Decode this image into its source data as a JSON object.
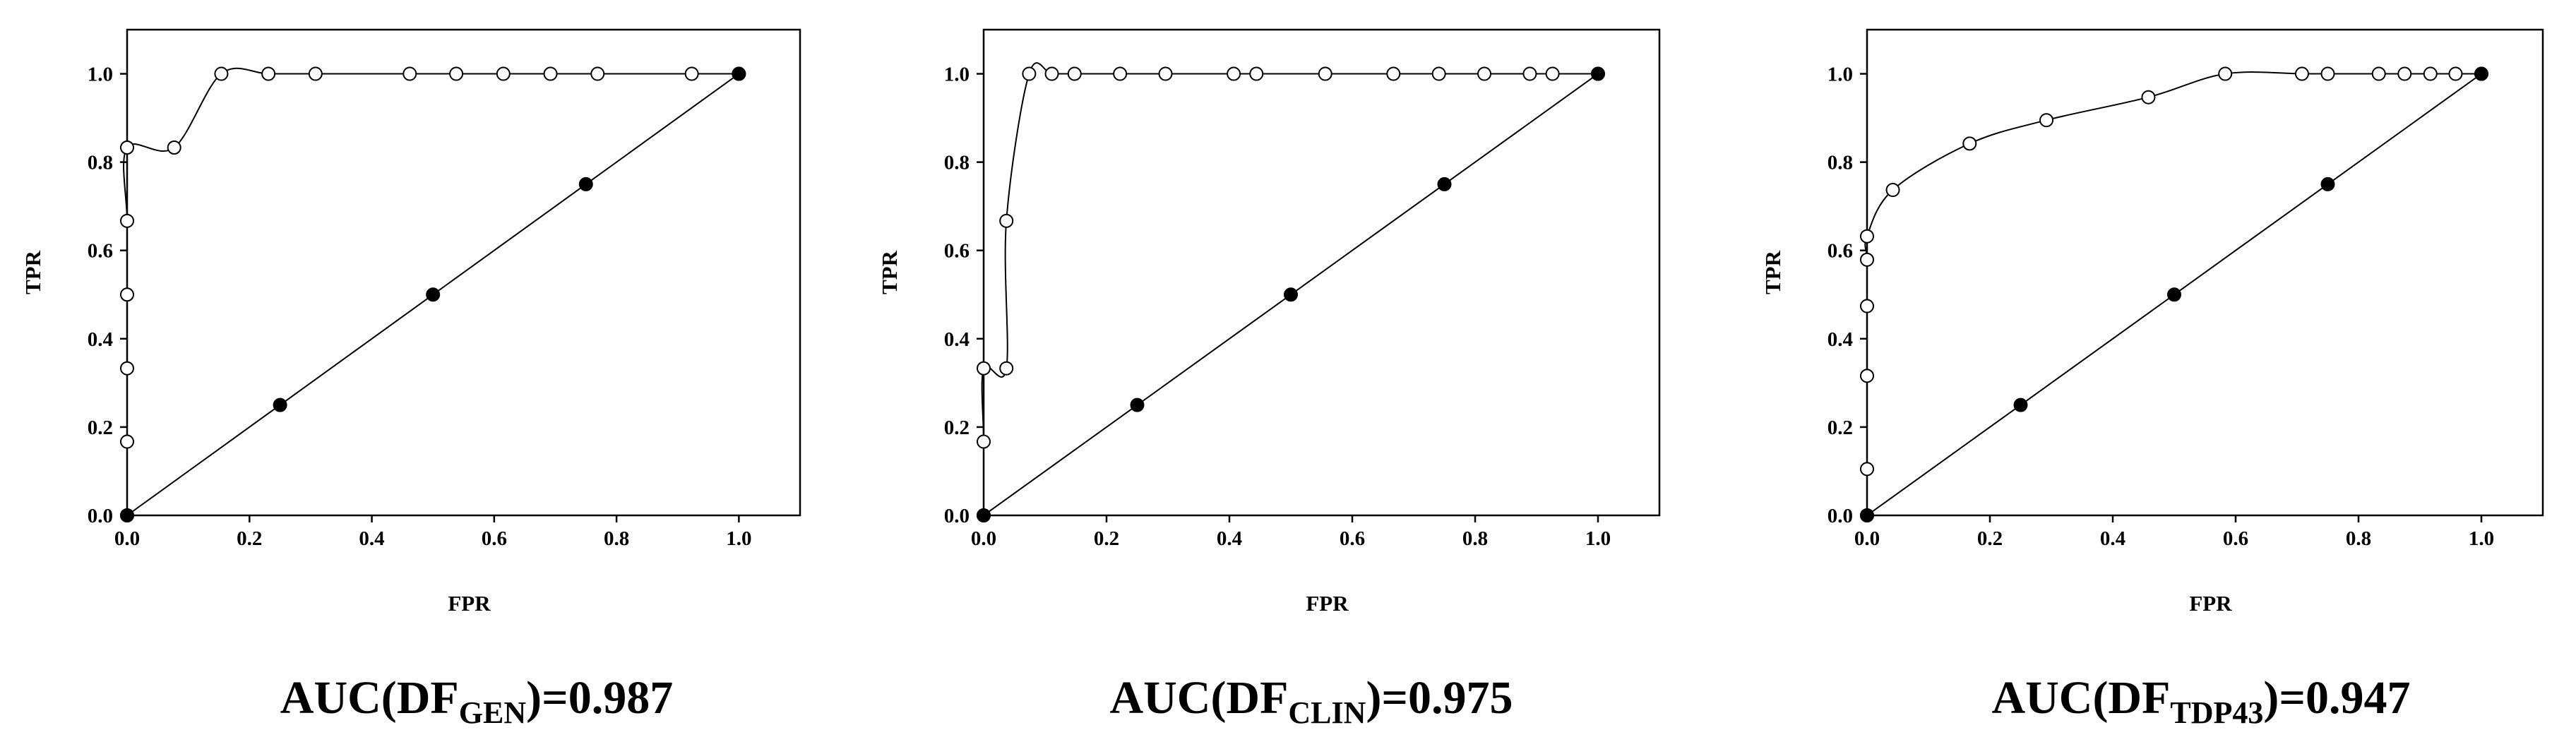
{
  "chart_data": [
    {
      "type": "line",
      "xlabel": "FPR",
      "ylabel": "TPR",
      "xlim": [
        0,
        1.1
      ],
      "ylim": [
        0,
        1.1
      ],
      "xticks": [
        "0.0",
        "0.2",
        "0.4",
        "0.6",
        "0.8",
        "1.0"
      ],
      "yticks": [
        "0.0",
        "0.2",
        "0.4",
        "0.6",
        "0.8",
        "1.0"
      ],
      "caption": {
        "prefix": "AUC(DF",
        "subscript": "GEN",
        "suffix": ")=0.987"
      },
      "series": [
        {
          "marker": "open-circle",
          "x": [
            0,
            0,
            0,
            0,
            0,
            0,
            0.077,
            0.154,
            0.231,
            0.308,
            0.462,
            0.538,
            0.615,
            0.692,
            0.769,
            0.923,
            1.0
          ],
          "y": [
            0,
            0.167,
            0.333,
            0.5,
            0.667,
            0.833,
            0.833,
            1.0,
            1.0,
            1.0,
            1.0,
            1.0,
            1.0,
            1.0,
            1.0,
            1.0,
            1.0
          ]
        },
        {
          "marker": "filled-circle",
          "x": [
            0,
            0.25,
            0.5,
            0.75,
            1.0
          ],
          "y": [
            0,
            0.25,
            0.5,
            0.75,
            1.0
          ]
        }
      ]
    },
    {
      "type": "line",
      "xlabel": "FPR",
      "ylabel": "TPR",
      "xlim": [
        0,
        1.1
      ],
      "ylim": [
        0,
        1.1
      ],
      "xticks": [
        "0.0",
        "0.2",
        "0.4",
        "0.6",
        "0.8",
        "1.0"
      ],
      "yticks": [
        "0.0",
        "0.2",
        "0.4",
        "0.6",
        "0.8",
        "1.0"
      ],
      "caption": {
        "prefix": "AUC(DF",
        "subscript": "CLIN",
        "suffix": ")=0.975"
      },
      "series": [
        {
          "marker": "open-circle",
          "x": [
            0,
            0,
            0,
            0.037,
            0.037,
            0.074,
            0.111,
            0.148,
            0.222,
            0.296,
            0.407,
            0.444,
            0.556,
            0.667,
            0.741,
            0.815,
            0.889,
            0.926,
            1.0
          ],
          "y": [
            0,
            0.167,
            0.333,
            0.333,
            0.667,
            1.0,
            1.0,
            1.0,
            1.0,
            1.0,
            1.0,
            1.0,
            1.0,
            1.0,
            1.0,
            1.0,
            1.0,
            1.0,
            1.0
          ]
        },
        {
          "marker": "filled-circle",
          "x": [
            0,
            0.25,
            0.5,
            0.75,
            1.0
          ],
          "y": [
            0,
            0.25,
            0.5,
            0.75,
            1.0
          ]
        }
      ]
    },
    {
      "type": "line",
      "xlabel": "FPR",
      "ylabel": "TPR",
      "xlim": [
        0,
        1.1
      ],
      "ylim": [
        0,
        1.1
      ],
      "xticks": [
        "0.0",
        "0.2",
        "0.4",
        "0.6",
        "0.8",
        "1.0"
      ],
      "yticks": [
        "0.0",
        "0.2",
        "0.4",
        "0.6",
        "0.8",
        "1.0"
      ],
      "caption": {
        "prefix": "AUC(DF",
        "subscript": "TDP43",
        "suffix": ")=0.947"
      },
      "series": [
        {
          "marker": "open-circle",
          "x": [
            0,
            0,
            0,
            0,
            0,
            0,
            0.042,
            0.167,
            0.292,
            0.458,
            0.583,
            0.708,
            0.75,
            0.833,
            0.875,
            0.917,
            0.958,
            1.0
          ],
          "y": [
            0,
            0.105,
            0.316,
            0.474,
            0.579,
            0.632,
            0.737,
            0.842,
            0.895,
            0.947,
            1.0,
            1.0,
            1.0,
            1.0,
            1.0,
            1.0,
            1.0,
            1.0
          ]
        },
        {
          "marker": "filled-circle",
          "x": [
            0,
            0.25,
            0.5,
            0.75,
            1.0
          ],
          "y": [
            0,
            0.25,
            0.5,
            0.75,
            1.0
          ]
        }
      ]
    }
  ]
}
